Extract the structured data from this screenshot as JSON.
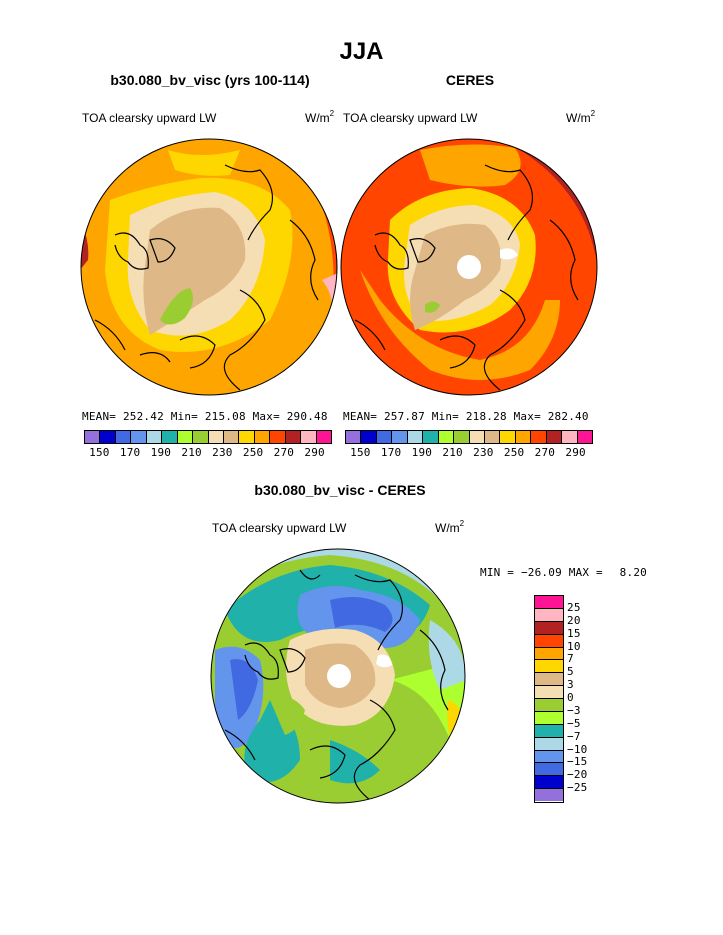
{
  "figure": {
    "season": "JJA",
    "panels": [
      {
        "id": "model",
        "case_title": "b30.080_bv_visc (yrs 100-114)",
        "variable_label": "TOA clearsky upward LW",
        "units_base": "W/m",
        "units_exp": "2",
        "mean_label": "MEAN=",
        "mean": "252.42",
        "min_label": "Min=",
        "min": "215.08",
        "max_label": "Max=",
        "max": "290.48"
      },
      {
        "id": "obs",
        "case_title": "CERES",
        "variable_label": "TOA clearsky upward LW",
        "units_base": "W/m",
        "units_exp": "2",
        "mean_label": "MEAN=",
        "mean": "257.87",
        "min_label": "Min=",
        "min": "218.28",
        "max_label": "Max=",
        "max": "282.40"
      }
    ],
    "diff": {
      "title": "b30.080_bv_visc - CERES",
      "variable_label": "TOA clearsky upward LW",
      "units_base": "W/m",
      "units_exp": "2",
      "min_label": "MIN =",
      "min": "−26.09",
      "max_label": "MAX =",
      "max": "8.20"
    },
    "colorbar_main": {
      "colors": [
        "#9370db",
        "#0000cd",
        "#4169e1",
        "#6495ed",
        "#add8e6",
        "#20b2aa",
        "#adff2f",
        "#9acd32",
        "#f5deb3",
        "#deb887",
        "#ffd700",
        "#ffa500",
        "#ff4500",
        "#b22222",
        "#ffb6c1",
        "#ff1493"
      ],
      "tick_labels": [
        "150",
        "170",
        "190",
        "210",
        "230",
        "250",
        "270",
        "290"
      ]
    },
    "colorbar_diff": {
      "colors": [
        "#ff1493",
        "#ffb6c1",
        "#b22222",
        "#ff4500",
        "#ffa500",
        "#ffd700",
        "#deb887",
        "#f5deb3",
        "#9acd32",
        "#adff2f",
        "#20b2aa",
        "#add8e6",
        "#6495ed",
        "#4169e1",
        "#0000cd",
        "#9370db"
      ],
      "tick_labels": [
        "25",
        "20",
        "15",
        "10",
        "7",
        "5",
        "3",
        "0",
        "−3",
        "−5",
        "−7",
        "−10",
        "−15",
        "−20",
        "−25"
      ]
    }
  }
}
